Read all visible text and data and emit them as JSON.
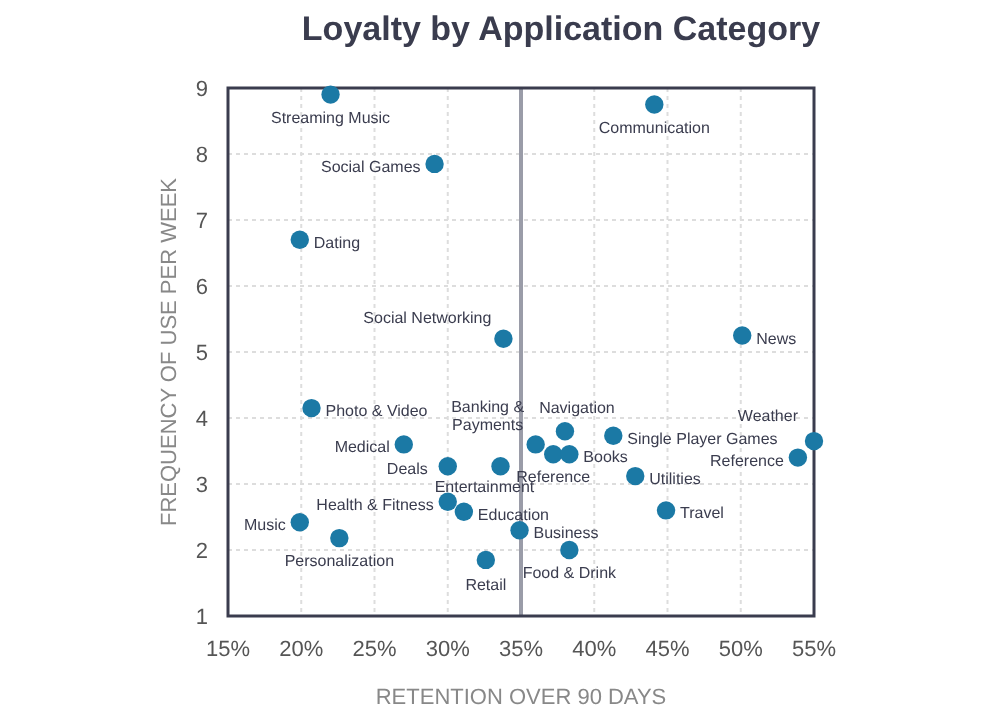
{
  "chart_data": {
    "type": "scatter",
    "title": "Loyalty by Application Category",
    "xlabel": "RETENTION OVER 90 DAYS",
    "ylabel": "FREQUENCY OF USE PER WEEK",
    "xlim": [
      15,
      55
    ],
    "xticks": [
      {
        "value": 15,
        "label": "15%"
      },
      {
        "value": 20,
        "label": "20%"
      },
      {
        "value": 25,
        "label": "25%"
      },
      {
        "value": 30,
        "label": "30%"
      },
      {
        "value": 35,
        "label": "35%"
      },
      {
        "value": 40,
        "label": "40%"
      },
      {
        "value": 45,
        "label": "45%"
      },
      {
        "value": 50,
        "label": "50%"
      },
      {
        "value": 55,
        "label": "55%"
      }
    ],
    "ylim": [
      1,
      9
    ],
    "yticks": [
      1,
      2,
      3,
      4,
      5,
      6,
      7,
      8,
      9
    ],
    "grid": true,
    "marker": "circle",
    "ref_lines": [
      {
        "axis": "x",
        "value": 35,
        "color": "#9a9ca8"
      }
    ],
    "series": [
      {
        "color": "#1b79a5",
        "x": [
          22,
          29.1,
          19.9,
          44.1,
          33.8,
          50.1,
          20.7,
          27,
          30,
          33.6,
          30,
          31.1,
          19.9,
          22.6,
          32.6,
          34.9,
          36,
          37.2,
          38,
          38.3,
          41.3,
          42.8,
          44.9,
          38.3,
          53.9,
          55
        ],
        "values": [
          8.9,
          7.85,
          6.7,
          8.75,
          5.2,
          5.25,
          4.15,
          3.6,
          3.27,
          3.27,
          2.73,
          2.58,
          2.42,
          2.18,
          1.85,
          2.3,
          3.6,
          3.45,
          3.8,
          3.45,
          3.73,
          3.12,
          2.6,
          2.0,
          3.4,
          3.65
        ]
      }
    ],
    "annotations": [
      {
        "text": "Streaming Music",
        "x": 22,
        "y": 8.9
      },
      {
        "text": "Social Games",
        "x": 29.1,
        "y": 7.85
      },
      {
        "text": "Dating",
        "x": 19.9,
        "y": 6.7
      },
      {
        "text": "Communication",
        "x": 44.1,
        "y": 8.75
      },
      {
        "text": "Social Networking",
        "x": 33.8,
        "y": 5.2
      },
      {
        "text": "News",
        "x": 50.1,
        "y": 5.25
      },
      {
        "text": "Photo & Video",
        "x": 20.7,
        "y": 4.15
      },
      {
        "text": "Medical",
        "x": 27,
        "y": 3.6
      },
      {
        "text": "Deals",
        "x": 30,
        "y": 3.27
      },
      {
        "text": "Entertainment",
        "x": 33.6,
        "y": 3.27
      },
      {
        "text": "Health & Fitness",
        "x": 30,
        "y": 2.73
      },
      {
        "text": "Education",
        "x": 31.1,
        "y": 2.58
      },
      {
        "text": "Music",
        "x": 19.9,
        "y": 2.42
      },
      {
        "text": "Personalization",
        "x": 22.6,
        "y": 2.18
      },
      {
        "text": "Retail",
        "x": 32.6,
        "y": 1.85
      },
      {
        "text": "Business",
        "x": 34.9,
        "y": 2.3
      },
      {
        "text": "Banking & Payments",
        "x": 36,
        "y": 3.6
      },
      {
        "text": "Reference",
        "x": 37.2,
        "y": 3.45
      },
      {
        "text": "Navigation",
        "x": 38,
        "y": 3.8
      },
      {
        "text": "Books",
        "x": 38.3,
        "y": 3.45
      },
      {
        "text": "Single Player Games",
        "x": 41.3,
        "y": 3.73
      },
      {
        "text": "Utilities",
        "x": 42.8,
        "y": 3.12
      },
      {
        "text": "Travel",
        "x": 44.9,
        "y": 2.6
      },
      {
        "text": "Food & Drink",
        "x": 38.3,
        "y": 2.0
      },
      {
        "text": "Reference",
        "x": 53.9,
        "y": 3.4
      },
      {
        "text": "Weather",
        "x": 55,
        "y": 3.65
      }
    ]
  }
}
